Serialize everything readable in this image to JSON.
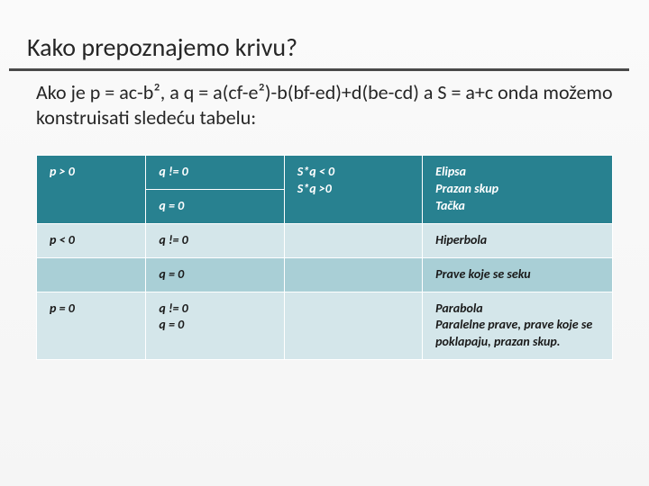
{
  "title": "Kako prepoznajemo krivu?",
  "subtitle": "Ako je p = ac-b², a q = a(cf-e²)-b(bf-ed)+d(be-cd) a S = a+c onda možemo konstruisati sledeću tabelu:",
  "table": {
    "colors": {
      "header_bg": "#288190",
      "header_fg": "#ffffff",
      "light_bg": "#d4e6ea",
      "mid_bg": "#a9cfd6",
      "cell_fg": "#1a1a1a",
      "border": "#ffffff"
    },
    "rows": [
      {
        "c0": "p > 0",
        "c1a": "q != 0",
        "c1b": "q = 0",
        "c2": "S*q < 0\nS*q >0",
        "c3": "Elipsa\nPrazan skup\nTačka",
        "style": "hdr"
      },
      {
        "c0": "p < 0",
        "c1": "q != 0",
        "c2": "",
        "c3": "Hiperbola",
        "style": "lt"
      },
      {
        "c0": "",
        "c1": "q = 0",
        "c2": "",
        "c3": "Prave koje se seku",
        "style": "md"
      },
      {
        "c0": "p = 0",
        "c1": "q != 0\nq = 0",
        "c2": "",
        "c3": "Parabola\nParalelne prave, prave koje se poklapaju, prazan skup.",
        "style": "lt"
      }
    ]
  }
}
